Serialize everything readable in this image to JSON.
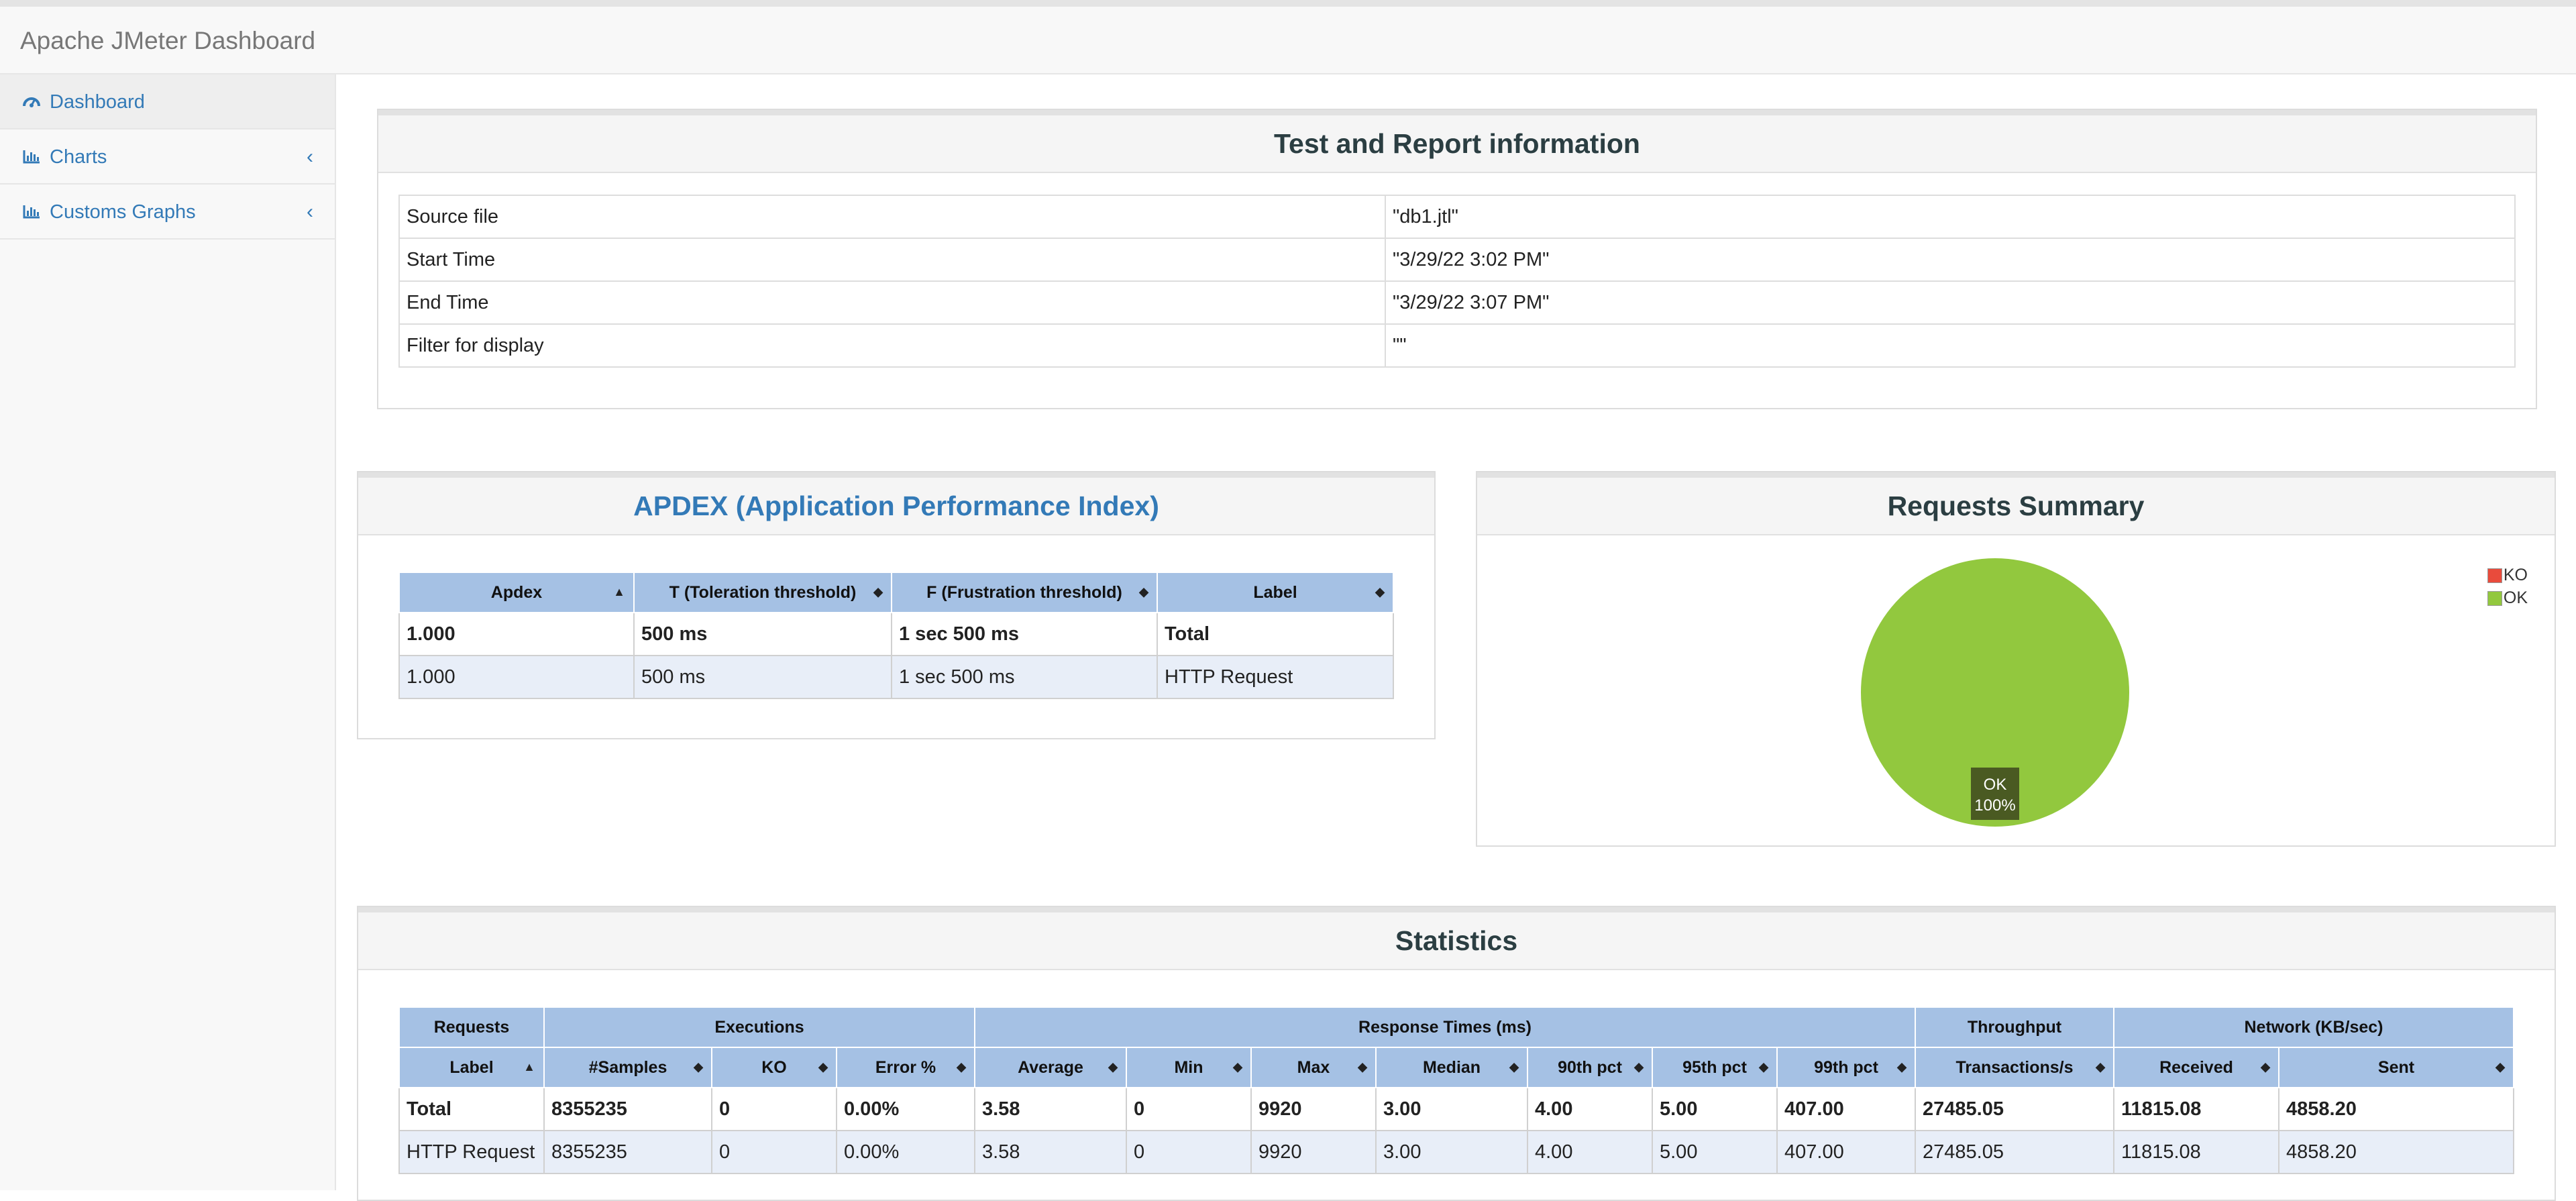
{
  "app": {
    "title": "Apache JMeter Dashboard"
  },
  "sidebar": {
    "items": [
      {
        "label": "Dashboard",
        "icon": "dashboard-icon",
        "active": true
      },
      {
        "label": "Charts",
        "icon": "bar-chart-icon",
        "expandable": true
      },
      {
        "label": "Customs Graphs",
        "icon": "bar-chart-icon",
        "expandable": true
      }
    ]
  },
  "info_panel": {
    "title": "Test and Report information",
    "rows": [
      {
        "key": "Source file",
        "value": "\"db1.jtl\""
      },
      {
        "key": "Start Time",
        "value": "\"3/29/22 3:02 PM\""
      },
      {
        "key": "End Time",
        "value": "\"3/29/22 3:07 PM\""
      },
      {
        "key": "Filter for display",
        "value": "\"\""
      }
    ]
  },
  "apdex": {
    "title": "APDEX (Application Performance Index)",
    "headers": [
      "Apdex",
      "T (Toleration threshold)",
      "F (Frustration threshold)",
      "Label"
    ],
    "rows": [
      [
        "1.000",
        "500 ms",
        "1 sec 500 ms",
        "Total"
      ],
      [
        "1.000",
        "500 ms",
        "1 sec 500 ms",
        "HTTP Request"
      ]
    ]
  },
  "requests_summary": {
    "title": "Requests Summary",
    "legend": [
      {
        "label": "KO",
        "color": "#e94b3c"
      },
      {
        "label": "OK",
        "color": "#92c83e"
      }
    ],
    "slice_label": "OK",
    "slice_pct": "100%"
  },
  "chart_data": {
    "type": "pie",
    "categories": [
      "KO",
      "OK"
    ],
    "values": [
      0,
      100
    ],
    "colors": [
      "#e94b3c",
      "#92c83e"
    ],
    "legend_position": "top-right"
  },
  "statistics": {
    "title": "Statistics",
    "groups": [
      "Requests",
      "Executions",
      "Response Times (ms)",
      "Throughput",
      "Network (KB/sec)"
    ],
    "headers": [
      "Label",
      "#Samples",
      "KO",
      "Error %",
      "Average",
      "Min",
      "Max",
      "Median",
      "90th pct",
      "95th pct",
      "99th pct",
      "Transactions/s",
      "Received",
      "Sent"
    ],
    "rows": [
      [
        "Total",
        "8355235",
        "0",
        "0.00%",
        "3.58",
        "0",
        "9920",
        "3.00",
        "4.00",
        "5.00",
        "407.00",
        "27485.05",
        "11815.08",
        "4858.20"
      ],
      [
        "HTTP Request",
        "8355235",
        "0",
        "0.00%",
        "3.58",
        "0",
        "9920",
        "3.00",
        "4.00",
        "5.00",
        "407.00",
        "27485.05",
        "11815.08",
        "4858.20"
      ]
    ]
  }
}
